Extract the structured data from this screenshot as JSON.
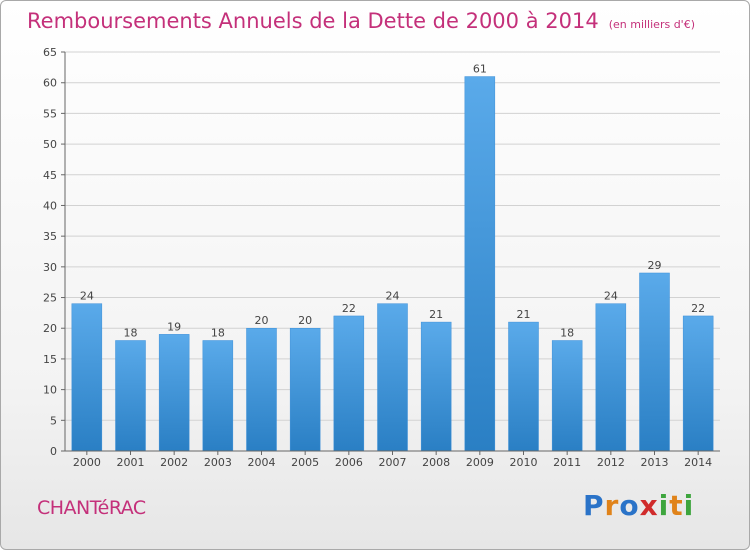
{
  "title": "Remboursements Annuels de la Dette de 2000 à 2014",
  "unit": "(en milliers d'€)",
  "commune": "CHANTéRAC",
  "logo": {
    "text": "Proxiti",
    "letters": [
      {
        "ch": "P",
        "color": "#2a73c8"
      },
      {
        "ch": "r",
        "color": "#e0831a"
      },
      {
        "ch": "o",
        "color": "#2a73c8"
      },
      {
        "ch": "x",
        "color": "#d02b2b"
      },
      {
        "ch": "i",
        "color": "#3da53d"
      },
      {
        "ch": "t",
        "color": "#e0831a"
      },
      {
        "ch": "i",
        "color": "#3da53d"
      }
    ]
  },
  "colors": {
    "title": "#c4307a",
    "bar_top": "#5aaaea",
    "bar_bottom": "#2a7fc4",
    "grid": "#d2d2d2",
    "axis_text": "#444444"
  },
  "chart_data": {
    "type": "bar",
    "categories": [
      "2000",
      "2001",
      "2002",
      "2003",
      "2004",
      "2005",
      "2006",
      "2007",
      "2008",
      "2009",
      "2010",
      "2011",
      "2012",
      "2013",
      "2014"
    ],
    "values": [
      24,
      18,
      19,
      18,
      20,
      20,
      22,
      24,
      21,
      61,
      21,
      18,
      24,
      29,
      22
    ],
    "title": "Remboursements Annuels de la Dette de 2000 à 2014",
    "ylim": [
      0,
      65
    ],
    "yticks": [
      0,
      5,
      10,
      15,
      20,
      25,
      30,
      35,
      40,
      45,
      50,
      55,
      60,
      65
    ],
    "grid": true,
    "data_labels": true
  }
}
